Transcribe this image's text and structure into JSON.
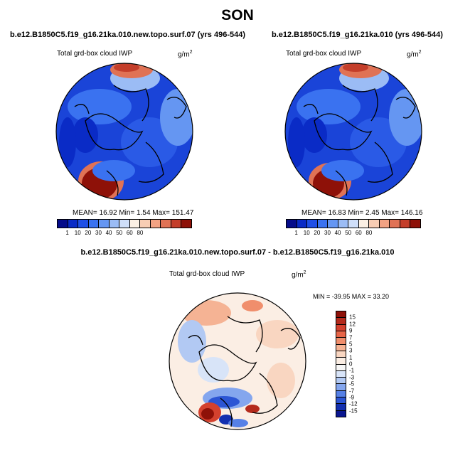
{
  "title": "SON",
  "panels": [
    {
      "run": "b.e12.B1850C5.f19_g16.21ka.010.new.topo.surf.07 (yrs 496-544)",
      "variable": "Total grd-box cloud IWP",
      "unit_base": "g/m",
      "unit_exp": "2",
      "stats": "MEAN=  16.92  Min=   1.54  Max= 151.47"
    },
    {
      "run": "b.e12.B1850C5.f19_g16.21ka.010 (yrs 496-544)",
      "variable": "Total grd-box cloud IWP",
      "unit_base": "g/m",
      "unit_exp": "2",
      "stats": "MEAN=  16.83  Min=   2.45  Max= 146.16"
    }
  ],
  "colorbar_abs": {
    "labels": [
      "1",
      "10",
      "20",
      "30",
      "40",
      "50",
      "60",
      "80"
    ],
    "colors": [
      "#050c8a",
      "#0a2bc6",
      "#1f4fe6",
      "#3a72f0",
      "#6596f2",
      "#9bbcf5",
      "#cfdffa",
      "#fbf0e4",
      "#f8cdb4",
      "#f2a283",
      "#e07255",
      "#c43e2a",
      "#8e1108"
    ]
  },
  "diff_panel": {
    "title": "b.e12.B1850C5.f19_g16.21ka.010.new.topo.surf.07 - b.e12.B1850C5.f19_g16.21ka.010",
    "variable": "Total grd-box cloud IWP",
    "unit_base": "g/m",
    "unit_exp": "2",
    "stats": "MIN = -39.95 MAX =  33.20"
  },
  "colorbar_diff": {
    "labels": [
      "15",
      "12",
      "9",
      "7",
      "5",
      "3",
      "1",
      "0",
      "-1",
      "-3",
      "-5",
      "-7",
      "-9",
      "-12",
      "-15"
    ],
    "colors": [
      "#8e1108",
      "#b42a1c",
      "#d4412e",
      "#e76548",
      "#f08e6c",
      "#f5b394",
      "#f9d6c1",
      "#fbeee4",
      "#f7f7f7",
      "#d8e4f8",
      "#b2c9f3",
      "#84a6ee",
      "#5680e6",
      "#2c55d4",
      "#1330b0",
      "#0a1690"
    ]
  }
}
